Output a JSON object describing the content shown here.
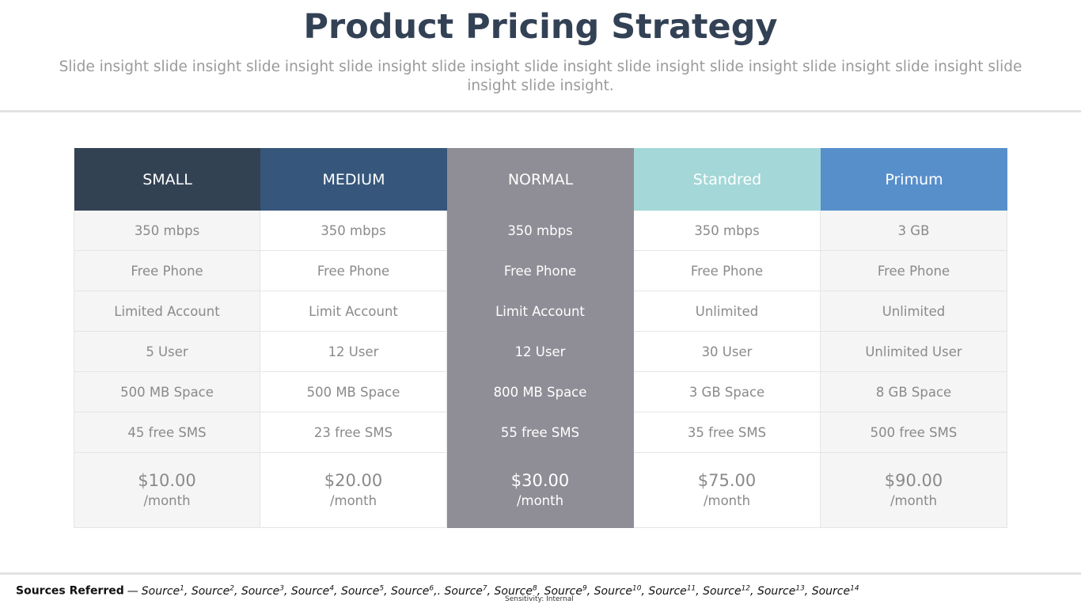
{
  "page": {
    "title": "Product Pricing Strategy",
    "subtitle": "Slide insight slide insight slide insight slide insight slide insight slide insight slide insight slide insight slide insight slide insight slide insight slide insight."
  },
  "plans": [
    {
      "name": "SMALL",
      "header_color": "#334253",
      "features": [
        "350 mbps",
        "Free Phone",
        "Limited Account",
        "5 User",
        "500 MB Space",
        "45 free SMS"
      ],
      "price": "$10.00",
      "period": "/month"
    },
    {
      "name": "MEDIUM",
      "header_color": "#36577b",
      "features": [
        "350 mbps",
        "Free Phone",
        "Limit Account",
        "12 User",
        "500 MB Space",
        "23 free SMS"
      ],
      "price": "$20.00",
      "period": "/month"
    },
    {
      "name": "NORMAL",
      "header_color": "#8f8e96",
      "features": [
        "350 mbps",
        "Free Phone",
        "Limit Account",
        "12 User",
        "800 MB Space",
        "55 free SMS"
      ],
      "price": "$30.00",
      "period": "/month"
    },
    {
      "name": "Standred",
      "header_color": "#a4d7d7",
      "features": [
        "350 mbps",
        "Free Phone",
        "Unlimited",
        "30 User",
        "3 GB Space",
        "35 free SMS"
      ],
      "price": "$75.00",
      "period": "/month"
    },
    {
      "name": "Primum",
      "header_color": "#578fcb",
      "features": [
        "3 GB",
        "Free Phone",
        "Unlimited",
        "Unlimited User",
        "8 GB Space",
        "500 free SMS"
      ],
      "price": "$90.00",
      "period": "/month"
    }
  ],
  "footer": {
    "label": "Sources Referred",
    "dash": "—",
    "sources": [
      {
        "text": "Source",
        "sup": "1",
        "sep": ","
      },
      {
        "text": "Source",
        "sup": "2",
        "sep": ","
      },
      {
        "text": "Source",
        "sup": "3",
        "sep": ","
      },
      {
        "text": "Source",
        "sup": "4",
        "sep": ","
      },
      {
        "text": "Source",
        "sup": "5",
        "sep": ","
      },
      {
        "text": "Source",
        "sup": "6",
        "sep": ",."
      },
      {
        "text": "Source",
        "sup": "7",
        "sep": ","
      },
      {
        "text": "Source",
        "sup": "8",
        "sep": ","
      },
      {
        "text": "Source",
        "sup": "9",
        "sep": ","
      },
      {
        "text": "Source",
        "sup": "10",
        "sep": ","
      },
      {
        "text": "Source",
        "sup": "11",
        "sep": ","
      },
      {
        "text": "Source",
        "sup": "12",
        "sep": ","
      },
      {
        "text": "Source",
        "sup": "13",
        "sep": ","
      },
      {
        "text": "Source",
        "sup": "14",
        "sep": ""
      }
    ],
    "sensitivity": "Sensitivity: Internal"
  }
}
